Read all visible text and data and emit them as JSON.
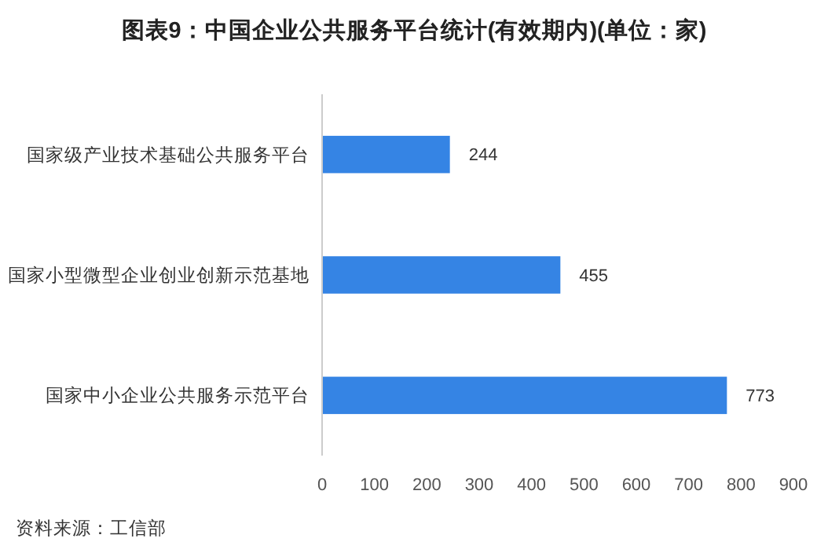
{
  "chart_data": {
    "type": "bar",
    "orientation": "horizontal",
    "title": "图表9：中国企业公共服务平台统计(有效期内)(单位：家)",
    "categories": [
      "国家级产业技术基础公共服务平台",
      "国家小型微型企业创业创新示范基地",
      "国家中小企业公共服务示范平台"
    ],
    "values": [
      244,
      455,
      773
    ],
    "color": "#3584e4",
    "xlim": [
      0,
      900
    ],
    "xticks": [
      0,
      100,
      200,
      300,
      400,
      500,
      600,
      700,
      800,
      900
    ],
    "data_labels": true,
    "grid": false,
    "annotations": [
      "资料来源：工信部"
    ]
  }
}
